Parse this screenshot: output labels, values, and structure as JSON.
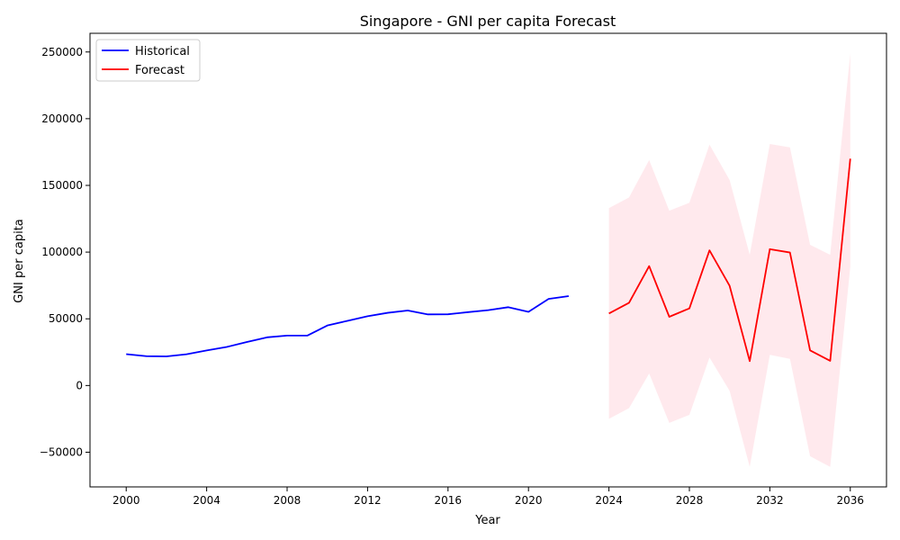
{
  "chart_data": {
    "type": "line",
    "title": "Singapore - GNI per capita Forecast",
    "xlabel": "Year",
    "ylabel": "GNI per capita",
    "xlim": [
      1998.2,
      2037.8
    ],
    "ylim": [
      -76000,
      264000
    ],
    "xticks": [
      2000,
      2004,
      2008,
      2012,
      2016,
      2020,
      2024,
      2028,
      2032,
      2036
    ],
    "yticks": [
      -50000,
      0,
      50000,
      100000,
      150000,
      200000,
      250000
    ],
    "grid": false,
    "legend": "top-left",
    "series": [
      {
        "name": "Historical",
        "color": "#0000ff",
        "x": [
          2000,
          2001,
          2002,
          2003,
          2004,
          2005,
          2006,
          2007,
          2008,
          2009,
          2010,
          2011,
          2012,
          2013,
          2014,
          2015,
          2016,
          2017,
          2018,
          2019,
          2020,
          2021,
          2022
        ],
        "y": [
          23500,
          22000,
          21800,
          23400,
          26300,
          28900,
          32600,
          36100,
          37400,
          37400,
          45000,
          48500,
          51900,
          54500,
          56200,
          53300,
          53400,
          55000,
          56500,
          58700,
          55200,
          64900,
          67000
        ]
      },
      {
        "name": "Forecast",
        "color": "#ff0000",
        "x": [
          2024,
          2025,
          2026,
          2027,
          2028,
          2029,
          2030,
          2031,
          2032,
          2033,
          2034,
          2035,
          2036
        ],
        "y": [
          54000,
          62000,
          89500,
          51500,
          57800,
          101300,
          74700,
          18300,
          102200,
          99700,
          26300,
          18500,
          170000
        ],
        "lower": [
          -25000,
          -17000,
          9000,
          -28000,
          -22000,
          21000,
          -4000,
          -61000,
          23000,
          20000,
          -53000,
          -61000,
          89000
        ],
        "upper": [
          133000,
          141000,
          169000,
          131000,
          137000,
          180500,
          154000,
          98000,
          181000,
          178500,
          105500,
          98000,
          249000
        ]
      }
    ],
    "band_color": "#ffc0cb"
  }
}
